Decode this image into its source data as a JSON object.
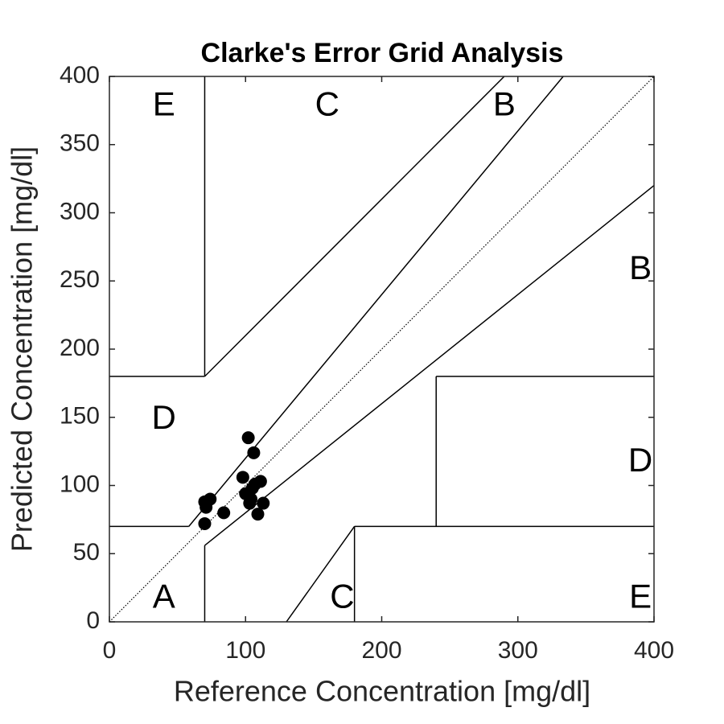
{
  "chart_data": {
    "type": "scatter",
    "title": "Clarke's Error Grid Analysis",
    "xlabel": "Reference Concentration [mg/dl]",
    "ylabel": "Predicted Concentration [mg/dl]",
    "xlim": [
      0,
      400
    ],
    "ylim": [
      0,
      400
    ],
    "xticks": [
      0,
      100,
      200,
      300,
      400
    ],
    "yticks": [
      0,
      50,
      100,
      150,
      200,
      250,
      300,
      350,
      400
    ],
    "color": "#000000",
    "x": [
      70,
      71,
      74,
      70,
      84,
      102,
      106,
      98,
      100,
      103,
      105,
      107,
      111,
      113,
      109,
      104
    ],
    "y": [
      88,
      84,
      90,
      72,
      80,
      135,
      124,
      106,
      94,
      87,
      98,
      101,
      103,
      87,
      79,
      90
    ],
    "zone_lines": [
      {
        "x": [
          0,
          400
        ],
        "y": [
          0,
          400
        ],
        "style": "dotted"
      },
      {
        "x": [
          0,
          58.33
        ],
        "y": [
          70,
          70
        ],
        "style": "solid"
      },
      {
        "x": [
          58.33,
          333.33
        ],
        "y": [
          70,
          400
        ],
        "style": "solid"
      },
      {
        "x": [
          70,
          70
        ],
        "y": [
          180,
          400
        ],
        "style": "solid"
      },
      {
        "x": [
          0,
          70
        ],
        "y": [
          180,
          180
        ],
        "style": "solid"
      },
      {
        "x": [
          70,
          290
        ],
        "y": [
          180,
          400
        ],
        "style": "solid"
      },
      {
        "x": [
          70,
          70
        ],
        "y": [
          0,
          56
        ],
        "style": "solid"
      },
      {
        "x": [
          70,
          400
        ],
        "y": [
          56,
          320
        ],
        "style": "solid"
      },
      {
        "x": [
          180,
          180
        ],
        "y": [
          0,
          70
        ],
        "style": "solid"
      },
      {
        "x": [
          180,
          400
        ],
        "y": [
          70,
          70
        ],
        "style": "solid"
      },
      {
        "x": [
          240,
          240
        ],
        "y": [
          70,
          180
        ],
        "style": "solid"
      },
      {
        "x": [
          240,
          400
        ],
        "y": [
          180,
          180
        ],
        "style": "solid"
      },
      {
        "x": [
          130,
          180
        ],
        "y": [
          0,
          70
        ],
        "style": "solid"
      }
    ],
    "zone_labels": [
      {
        "text": "E",
        "x": 40,
        "y": 378
      },
      {
        "text": "C",
        "x": 160,
        "y": 378
      },
      {
        "text": "B",
        "x": 290,
        "y": 378
      },
      {
        "text": "B",
        "x": 390,
        "y": 258
      },
      {
        "text": "D",
        "x": 40,
        "y": 148
      },
      {
        "text": "D",
        "x": 390,
        "y": 117
      },
      {
        "text": "A",
        "x": 40,
        "y": 17
      },
      {
        "text": "C",
        "x": 171,
        "y": 17
      },
      {
        "text": "E",
        "x": 390,
        "y": 17
      }
    ]
  }
}
